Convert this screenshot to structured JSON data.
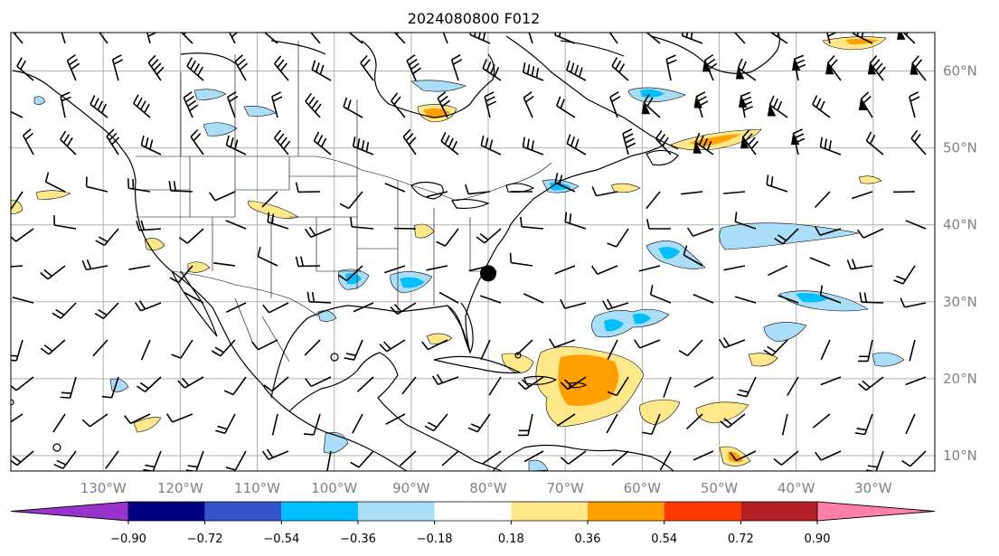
{
  "title": "2024080800 F012",
  "map": {
    "longitude_labels": [
      "130°W",
      "120°W",
      "110°W",
      "100°W",
      "90°W",
      "80°W",
      "70°W",
      "60°W",
      "50°W",
      "40°W",
      "30°W"
    ],
    "latitude_labels": [
      "60°N",
      "50°N",
      "40°N",
      "30°N",
      "20°N",
      "10°N"
    ],
    "grid_lines": true,
    "extent": {
      "lon_min": -142,
      "lon_max": -22,
      "lat_min": 8,
      "lat_max": 65
    },
    "marker": {
      "name": "station-dot",
      "lon": -80,
      "lat": 33.7,
      "color": "#000000"
    },
    "coastline_color": "#000000",
    "wind_barbs": "black",
    "field": "shaded anomaly"
  },
  "colorbar": {
    "tick_labels": [
      "−0.90",
      "−0.72",
      "−0.54",
      "−0.36",
      "−0.18",
      "0.18",
      "0.36",
      "0.54",
      "0.72",
      "0.90"
    ],
    "colors": [
      "#9933cc",
      "#000080",
      "#3355cc",
      "#00bfff",
      "#aaddf7",
      "#ffffff",
      "#ffe88a",
      "#ffa000",
      "#ff3a00",
      "#b21f24",
      "#ff80a8"
    ],
    "extend": "both"
  }
}
